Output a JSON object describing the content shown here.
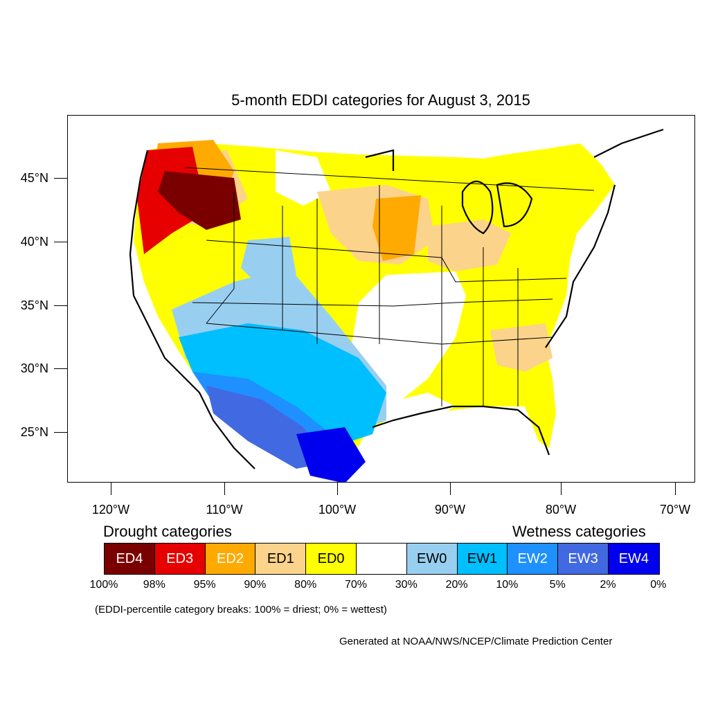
{
  "title": "5-month EDDI categories for August 3, 2015",
  "map": {
    "lat_labels": [
      "45°N",
      "40°N",
      "35°N",
      "30°N",
      "25°N"
    ],
    "lon_labels": [
      "120°W",
      "110°W",
      "100°W",
      "90°W",
      "80°W",
      "70°W"
    ]
  },
  "legend": {
    "drought_heading": "Drought categories",
    "wetness_heading": "Wetness categories",
    "categories": [
      {
        "label": "ED4",
        "color": "#7a0000",
        "text_color": "#ffffff"
      },
      {
        "label": "ED3",
        "color": "#e60000",
        "text_color": "#ffffff"
      },
      {
        "label": "ED2",
        "color": "#ffaa00",
        "text_color": "#ffffff"
      },
      {
        "label": "ED1",
        "color": "#fcd38b",
        "text_color": "#000000"
      },
      {
        "label": "ED0",
        "color": "#ffff00",
        "text_color": "#000000"
      },
      {
        "label": "",
        "color": "#ffffff",
        "text_color": "#000000"
      },
      {
        "label": "EW0",
        "color": "#98cff0",
        "text_color": "#000000"
      },
      {
        "label": "EW1",
        "color": "#00bfff",
        "text_color": "#000000"
      },
      {
        "label": "EW2",
        "color": "#1e90ff",
        "text_color": "#ffffff"
      },
      {
        "label": "EW3",
        "color": "#4169e1",
        "text_color": "#ffffff"
      },
      {
        "label": "EW4",
        "color": "#0000ee",
        "text_color": "#ffffff"
      }
    ],
    "breaks": [
      "100%",
      "98%",
      "95%",
      "90%",
      "80%",
      "70%",
      "30%",
      "20%",
      "10%",
      "5%",
      "2%",
      "0%"
    ]
  },
  "note": "(EDDI-percentile category breaks: 100% = driest; 0% = wettest)",
  "credit": "Generated at NOAA/NWS/NCEP/Climate Prediction Center"
}
